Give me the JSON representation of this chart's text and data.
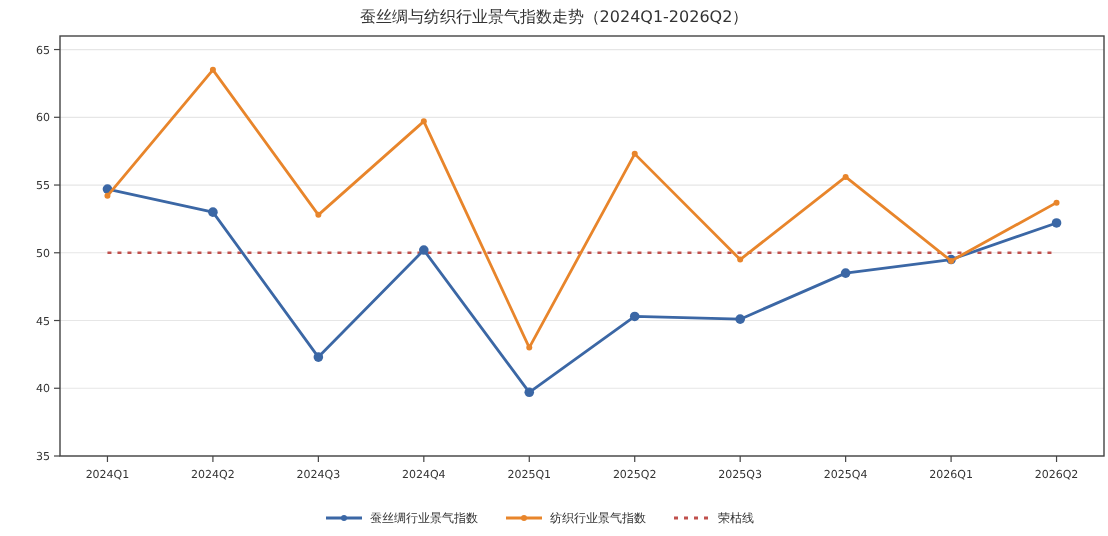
{
  "chart_data": {
    "type": "line",
    "title": "蚕丝绸与纺织行业景气指数走势（2024Q1-2026Q2）",
    "categories": [
      "2024Q1",
      "2024Q2",
      "2024Q3",
      "2024Q4",
      "2025Q1",
      "2025Q2",
      "2025Q3",
      "2025Q4",
      "2026Q1",
      "2026Q2"
    ],
    "series": [
      {
        "name": "蚕丝绸行业景气指数",
        "color": "#3b67a5",
        "values": [
          54.7,
          53.0,
          42.3,
          50.2,
          39.7,
          45.3,
          45.1,
          48.5,
          49.5,
          52.2
        ]
      },
      {
        "name": "纺织行业景气指数",
        "color": "#e8852b",
        "values": [
          54.2,
          63.5,
          52.8,
          59.7,
          43.0,
          57.3,
          49.5,
          55.6,
          49.4,
          53.7
        ]
      }
    ],
    "ref_lines": [
      {
        "axis": "y",
        "value": 50,
        "label": "荣枯线",
        "color": "#c0504d",
        "line_style": "dotted"
      }
    ],
    "ylim": [
      35,
      66
    ],
    "yticks": [
      35,
      40,
      45,
      50,
      55,
      60,
      65
    ],
    "grid": "y",
    "legend": "bottom",
    "marker": "circle",
    "line_style": "solid"
  }
}
